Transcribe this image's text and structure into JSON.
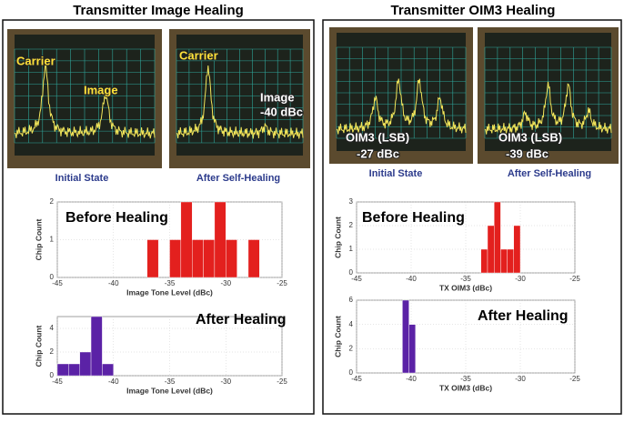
{
  "panels": [
    {
      "title": "Transmitter Image Healing",
      "photos": [
        {
          "labels": [
            "Carrier",
            "Image"
          ],
          "caption": "Initial State"
        },
        {
          "labels": [
            "Carrier",
            "Image",
            "-40 dBc"
          ],
          "caption": "After Self-Healing"
        }
      ]
    },
    {
      "title": "Transmitter OIM3 Healing",
      "photos": [
        {
          "labels": [
            "OIM3 (LSB)",
            "-27 dBc"
          ],
          "caption": "Initial State"
        },
        {
          "labels": [
            "OIM3 (LSB)",
            "-39 dBc"
          ],
          "caption": "After Self-Healing"
        }
      ]
    }
  ],
  "chart_data": [
    {
      "type": "histogram",
      "annotation": "Before Healing",
      "xlabel": "Image Tone Level (dBc)",
      "ylabel": "Chip Count",
      "color": "#e3201e",
      "bins": [
        -37,
        -36,
        -35,
        -34,
        -33,
        -32,
        -31,
        -30,
        -29,
        -28,
        -27
      ],
      "values": [
        1,
        0,
        1,
        2,
        1,
        1,
        2,
        1,
        0,
        1
      ],
      "xlim": [
        -45,
        -25
      ],
      "xticks": [
        -45,
        -40,
        -35,
        -30,
        -25
      ],
      "ylim": [
        0,
        2
      ],
      "yticks": [
        0,
        1,
        2
      ]
    },
    {
      "type": "histogram",
      "annotation": "After Healing",
      "xlabel": "Image Tone Level (dBc)",
      "ylabel": "Chip Count",
      "color": "#5b22a6",
      "bins": [
        -45,
        -44,
        -43,
        -42,
        -41,
        -40
      ],
      "values": [
        1,
        1,
        2,
        5,
        1
      ],
      "xlim": [
        -45,
        -25
      ],
      "xticks": [
        -45,
        -40,
        -35,
        -30,
        -25
      ],
      "ylim": [
        0,
        5
      ],
      "yticks": [
        0,
        2,
        4
      ]
    },
    {
      "type": "histogram",
      "annotation": "Before Healing",
      "xlabel": "TX OIM3 (dBc)",
      "ylabel": "Chip Count",
      "color": "#e3201e",
      "bins": [
        -33.6,
        -33,
        -32.4,
        -31.8,
        -31.2,
        -30.6,
        -30
      ],
      "values": [
        1,
        2,
        3,
        1,
        1,
        2
      ],
      "xlim": [
        -45,
        -25
      ],
      "xticks": [
        -45,
        -40,
        -35,
        -30,
        -25
      ],
      "ylim": [
        0,
        3
      ],
      "yticks": [
        0,
        1,
        2,
        3
      ]
    },
    {
      "type": "histogram",
      "annotation": "After Healing",
      "xlabel": "TX OIM3 (dBc)",
      "ylabel": "Chip Count",
      "color": "#5b22a6",
      "bins": [
        -40.8,
        -40.2,
        -39.6
      ],
      "values": [
        6,
        4
      ],
      "xlim": [
        -45,
        -25
      ],
      "xticks": [
        -45,
        -40,
        -35,
        -30,
        -25
      ],
      "ylim": [
        0,
        6
      ],
      "yticks": [
        0,
        2,
        4,
        6
      ]
    }
  ]
}
